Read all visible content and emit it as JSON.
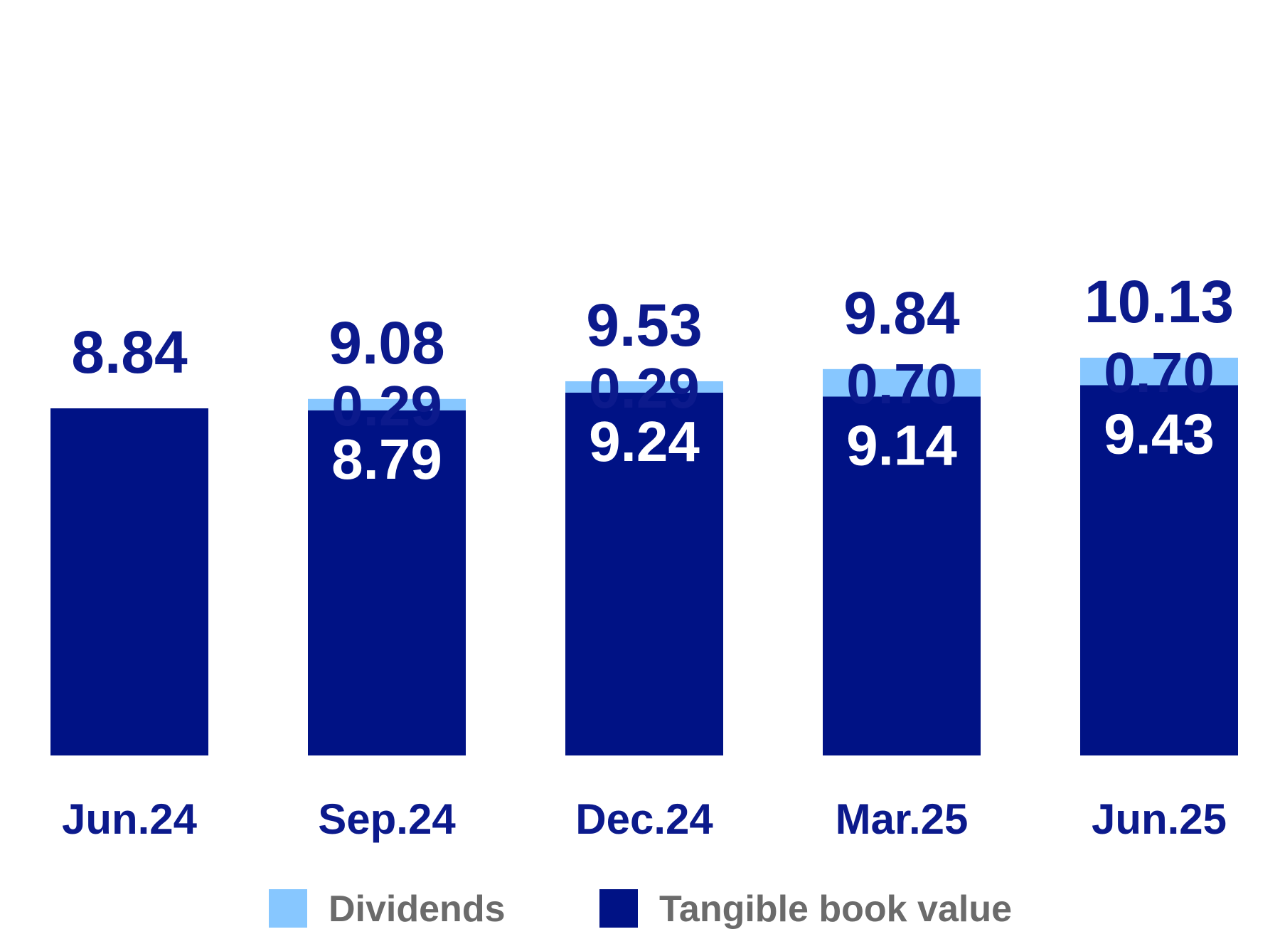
{
  "chart_data": {
    "type": "bar",
    "stacked": true,
    "categories": [
      "Jun.24",
      "Sep.24",
      "Dec.24",
      "Mar.25",
      "Jun.25"
    ],
    "series": [
      {
        "name": "Tangible book value",
        "values": [
          8.84,
          8.79,
          9.24,
          9.14,
          9.43
        ],
        "color": "#001285"
      },
      {
        "name": "Dividends",
        "values": [
          0,
          0.29,
          0.29,
          0.7,
          0.7
        ],
        "color": "#87c7ff"
      }
    ],
    "segment_labels": {
      "Tangible book value": [
        "",
        "8.79",
        "9.24",
        "9.14",
        "9.43"
      ],
      "Dividends": [
        "",
        "0.29",
        "0.29",
        "0.70",
        "0.70"
      ]
    },
    "totals": [
      "8.84",
      "9.08",
      "9.53",
      "9.84",
      "10.13"
    ],
    "legend": [
      {
        "label": "Dividends",
        "color": "#87c7ff"
      },
      {
        "label": "Tangible book value",
        "color": "#001285"
      }
    ],
    "legend_position": "bottom",
    "grid": false,
    "title": "",
    "xlabel": "",
    "ylabel": ""
  }
}
